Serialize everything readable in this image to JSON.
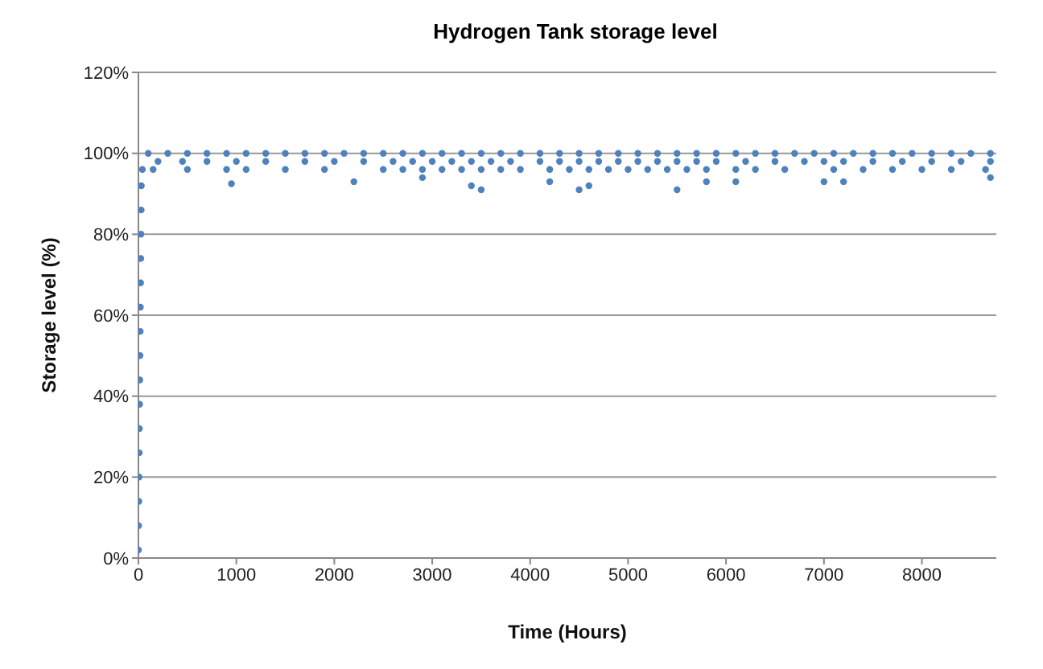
{
  "chart_data": {
    "type": "scatter",
    "title": "Hydrogen Tank storage level",
    "xlabel": "Time (Hours)",
    "ylabel": "Storage level (%)",
    "xlim": [
      0,
      8760
    ],
    "xticks": [
      0,
      1000,
      2000,
      3000,
      4000,
      5000,
      6000,
      7000,
      8000
    ],
    "ylim": [
      0,
      120
    ],
    "yticks": [
      {
        "value": 0,
        "label": "0%"
      },
      {
        "value": 20,
        "label": "20%"
      },
      {
        "value": 40,
        "label": "40%"
      },
      {
        "value": 60,
        "label": "60%"
      },
      {
        "value": 80,
        "label": "80%"
      },
      {
        "value": 100,
        "label": "100%"
      },
      {
        "value": 120,
        "label": "120%"
      }
    ],
    "grid": "y",
    "marker": "circle",
    "series": [
      {
        "color": "#4f81bd",
        "x": [
          0,
          2,
          4,
          6,
          8,
          10,
          12,
          14,
          16,
          18,
          20,
          22,
          24,
          26,
          28,
          30,
          40,
          100,
          300,
          500,
          700,
          900,
          1100,
          1300,
          1500,
          1700,
          1900,
          2100,
          2300,
          2500,
          2700,
          2900,
          3100,
          3300,
          3500,
          3700,
          3900,
          4100,
          4300,
          4500,
          4700,
          4900,
          5100,
          5300,
          5500,
          5700,
          5900,
          6100,
          6300,
          6500,
          6700,
          6900,
          7100,
          7300,
          7500,
          7700,
          7900,
          8100,
          8300,
          8500,
          8700,
          200,
          450,
          700,
          1000,
          1300,
          1700,
          2000,
          2300,
          2600,
          2800,
          3000,
          3200,
          3400,
          3600,
          3800,
          4100,
          4300,
          4500,
          4700,
          4900,
          5100,
          5300,
          5500,
          5700,
          5900,
          6200,
          6500,
          6800,
          7000,
          7200,
          7500,
          7800,
          8100,
          8400,
          8700,
          150,
          500,
          900,
          1100,
          1500,
          1900,
          2500,
          2700,
          2900,
          3100,
          3300,
          3500,
          3700,
          3900,
          4200,
          4400,
          4600,
          4800,
          5000,
          5200,
          5400,
          5600,
          5800,
          6100,
          6300,
          6600,
          7100,
          7400,
          7700,
          8000,
          8300,
          8650,
          950,
          2200,
          2900,
          3400,
          3500,
          4200,
          4500,
          4600,
          5500,
          5800,
          6100,
          7000,
          7200,
          8700
        ],
        "values": [
          2,
          8,
          14,
          20,
          26,
          32,
          38,
          44,
          50,
          56,
          62,
          68,
          74,
          80,
          86,
          92,
          96,
          100,
          100,
          100,
          100,
          100,
          100,
          100,
          100,
          100,
          100,
          100,
          100,
          100,
          100,
          100,
          100,
          100,
          100,
          100,
          100,
          100,
          100,
          100,
          100,
          100,
          100,
          100,
          100,
          100,
          100,
          100,
          100,
          100,
          100,
          100,
          100,
          100,
          100,
          100,
          100,
          100,
          100,
          100,
          100,
          98,
          98,
          98,
          98,
          98,
          98,
          98,
          98,
          98,
          98,
          98,
          98,
          98,
          98,
          98,
          98,
          98,
          98,
          98,
          98,
          98,
          98,
          98,
          98,
          98,
          98,
          98,
          98,
          98,
          98,
          98,
          98,
          98,
          98,
          98,
          96,
          96,
          96,
          96,
          96,
          96,
          96,
          96,
          96,
          96,
          96,
          96,
          96,
          96,
          96,
          96,
          96,
          96,
          96,
          96,
          96,
          96,
          96,
          96,
          96,
          96,
          96,
          96,
          96,
          96,
          96,
          96,
          92.5,
          93,
          94,
          92,
          91,
          93,
          91,
          92,
          91,
          93,
          93,
          93,
          93,
          94
        ]
      }
    ]
  }
}
